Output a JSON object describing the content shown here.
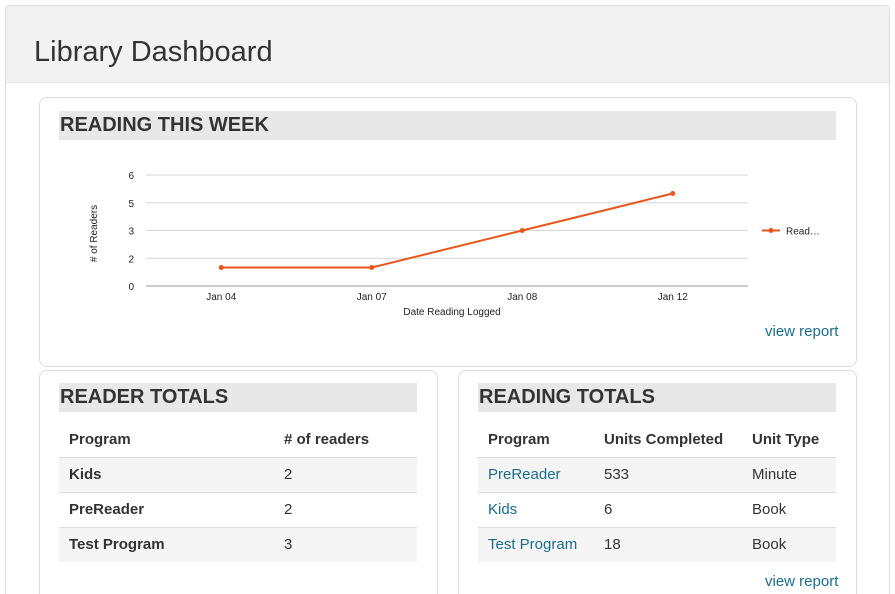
{
  "page": {
    "title": "Library Dashboard"
  },
  "reading_this_week": {
    "title": "READING THIS WEEK",
    "view_report": "view report"
  },
  "chart_data": {
    "type": "line",
    "xlabel": "Date Reading Logged",
    "ylabel": "# of Readers",
    "categories": [
      "Jan 04",
      "Jan 07",
      "Jan 08",
      "Jan 12"
    ],
    "yticks": [
      "0",
      "2",
      "3",
      "5",
      "6"
    ],
    "ylim": [
      0,
      6
    ],
    "grid": true,
    "legend_position": "right",
    "series": [
      {
        "name": "Read…",
        "values": [
          1,
          1,
          3,
          5
        ],
        "color": "#e8561c"
      }
    ]
  },
  "reader_totals": {
    "title": "READER TOTALS",
    "headers": [
      "Program",
      "# of readers"
    ],
    "rows": [
      [
        "Kids",
        "2"
      ],
      [
        "PreReader",
        "2"
      ],
      [
        "Test Program",
        "3"
      ]
    ]
  },
  "reading_totals": {
    "title": "READING TOTALS",
    "headers": [
      "Program",
      "Units Completed",
      "Unit Type"
    ],
    "rows": [
      [
        "PreReader",
        "533",
        "Minute"
      ],
      [
        "Kids",
        "6",
        "Book"
      ],
      [
        "Test Program",
        "18",
        "Book"
      ]
    ],
    "view_report": "view report"
  },
  "colors": {
    "link": "#1a6d8a",
    "line": "#e8561c",
    "title_bar": "#e8e8e8"
  }
}
